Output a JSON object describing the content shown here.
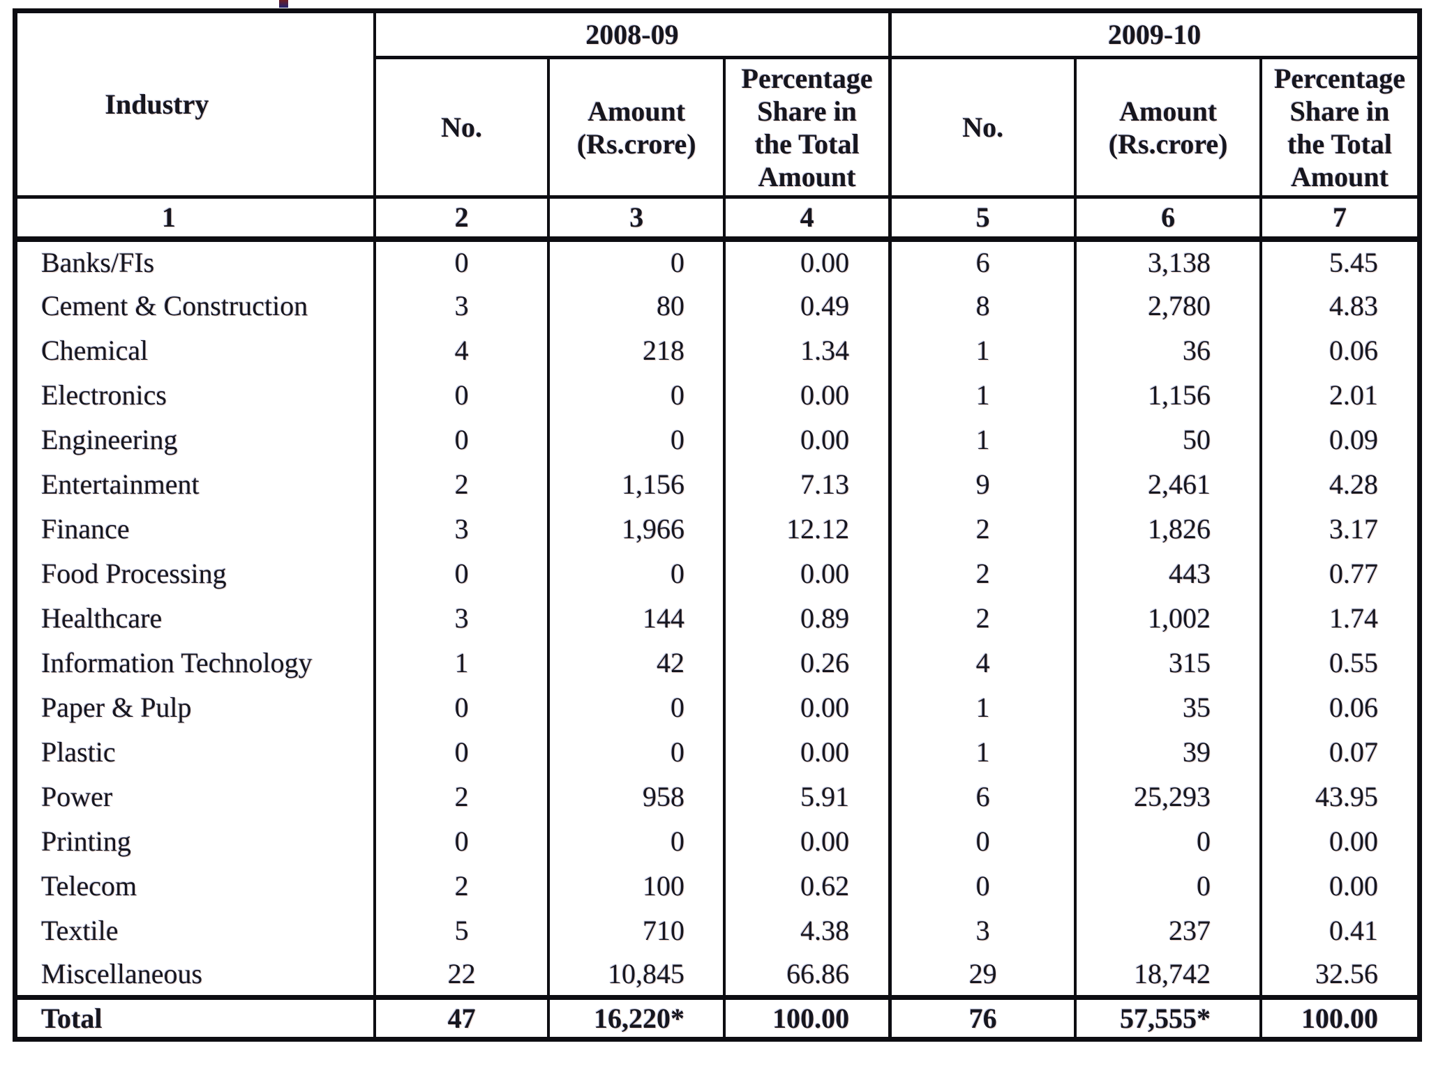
{
  "table": {
    "columns": {
      "industry": "Industry",
      "numbers": [
        "1",
        "2",
        "3",
        "4",
        "5",
        "6",
        "7"
      ],
      "groups": [
        {
          "year": "2008-09",
          "no": "No.",
          "amount": "Amount\n(Rs.crore)",
          "pct": "Percentage\nShare in\nthe Total\nAmount"
        },
        {
          "year": "2009-10",
          "no": "No.",
          "amount": "Amount\n(Rs.crore)",
          "pct": "Percentage\nShare in\nthe Total\nAmount"
        }
      ]
    },
    "rows": [
      {
        "name": "Banks/FIs",
        "n1": "0",
        "a1": "0",
        "p1": "0.00",
        "n2": "6",
        "a2": "3,138",
        "p2": "5.45"
      },
      {
        "name": "Cement & Construction",
        "n1": "3",
        "a1": "80",
        "p1": "0.49",
        "n2": "8",
        "a2": "2,780",
        "p2": "4.83"
      },
      {
        "name": "Chemical",
        "n1": "4",
        "a1": "218",
        "p1": "1.34",
        "n2": "1",
        "a2": "36",
        "p2": "0.06"
      },
      {
        "name": "Electronics",
        "n1": "0",
        "a1": "0",
        "p1": "0.00",
        "n2": "1",
        "a2": "1,156",
        "p2": "2.01"
      },
      {
        "name": "Engineering",
        "n1": "0",
        "a1": "0",
        "p1": "0.00",
        "n2": "1",
        "a2": "50",
        "p2": "0.09"
      },
      {
        "name": "Entertainment",
        "n1": "2",
        "a1": "1,156",
        "p1": "7.13",
        "n2": "9",
        "a2": "2,461",
        "p2": "4.28"
      },
      {
        "name": "Finance",
        "n1": "3",
        "a1": "1,966",
        "p1": "12.12",
        "n2": "2",
        "a2": "1,826",
        "p2": "3.17"
      },
      {
        "name": "Food Processing",
        "n1": "0",
        "a1": "0",
        "p1": "0.00",
        "n2": "2",
        "a2": "443",
        "p2": "0.77"
      },
      {
        "name": "Healthcare",
        "n1": "3",
        "a1": "144",
        "p1": "0.89",
        "n2": "2",
        "a2": "1,002",
        "p2": "1.74"
      },
      {
        "name": "Information Technology",
        "n1": "1",
        "a1": "42",
        "p1": "0.26",
        "n2": "4",
        "a2": "315",
        "p2": "0.55"
      },
      {
        "name": "Paper & Pulp",
        "n1": "0",
        "a1": "0",
        "p1": "0.00",
        "n2": "1",
        "a2": "35",
        "p2": "0.06"
      },
      {
        "name": "Plastic",
        "n1": "0",
        "a1": "0",
        "p1": "0.00",
        "n2": "1",
        "a2": "39",
        "p2": "0.07"
      },
      {
        "name": "Power",
        "n1": "2",
        "a1": "958",
        "p1": "5.91",
        "n2": "6",
        "a2": "25,293",
        "p2": "43.95"
      },
      {
        "name": "Printing",
        "n1": "0",
        "a1": "0",
        "p1": "0.00",
        "n2": "0",
        "a2": "0",
        "p2": "0.00"
      },
      {
        "name": "Telecom",
        "n1": "2",
        "a1": "100",
        "p1": "0.62",
        "n2": "0",
        "a2": "0",
        "p2": "0.00"
      },
      {
        "name": "Textile",
        "n1": "5",
        "a1": "710",
        "p1": "4.38",
        "n2": "3",
        "a2": "237",
        "p2": "0.41"
      },
      {
        "name": "Miscellaneous",
        "n1": "22",
        "a1": "10,845",
        "p1": "66.86",
        "n2": "29",
        "a2": "18,742",
        "p2": "32.56"
      }
    ],
    "total": {
      "label": "Total",
      "n1": "47",
      "a1": "16,220*",
      "p1": "100.00",
      "n2": "76",
      "a2": "57,555*",
      "p2": "100.00"
    }
  }
}
